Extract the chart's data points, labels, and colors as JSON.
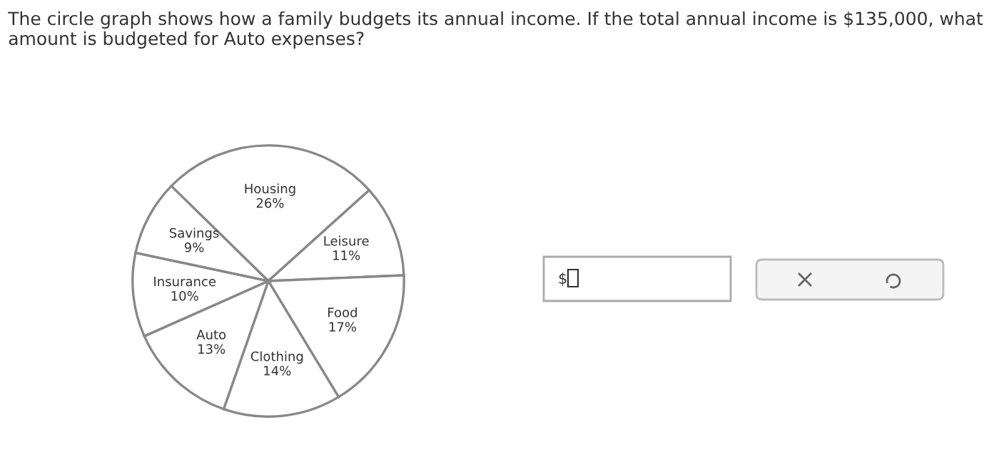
{
  "chart_data": {
    "type": "pie",
    "title": "The circle graph shows how a family budgets its annual income. If the total annual income is $135,000, what amount is budgeted for Auto expenses?",
    "categories": [
      "Housing",
      "Leisure",
      "Food",
      "Clothing",
      "Auto",
      "Insurance",
      "Savings"
    ],
    "values": [
      26,
      11,
      17,
      14,
      13,
      10,
      9
    ],
    "colors": [
      "#ffffff",
      "#ffffff",
      "#ffffff",
      "#ffffff",
      "#ffffff",
      "#ffffff",
      "#ffffff"
    ],
    "value_labels": [
      "26%",
      "11%",
      "17%",
      "14%",
      "13%",
      "10%",
      "9%"
    ],
    "annotations": [
      "$"
    ]
  }
}
